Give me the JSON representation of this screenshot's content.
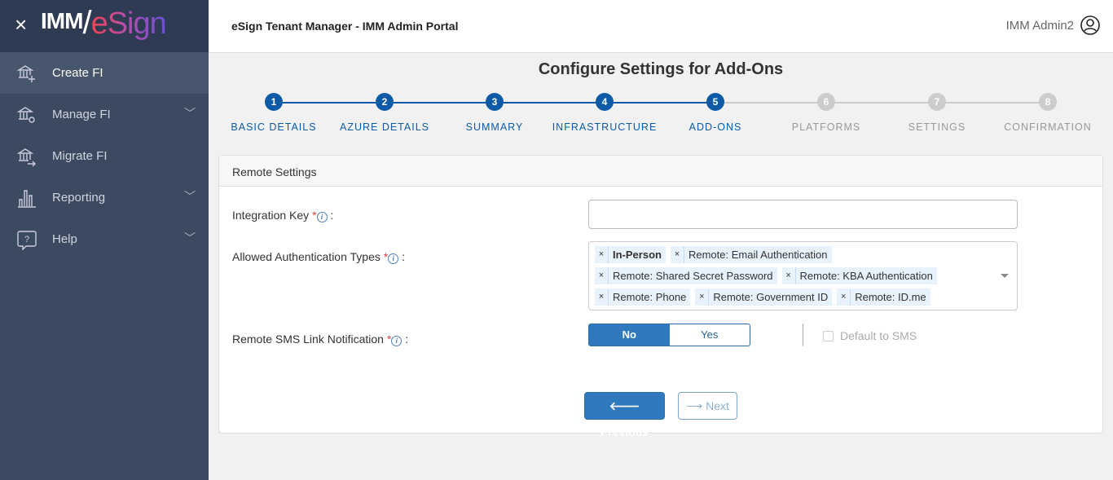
{
  "sidebar": {
    "close_icon": "close-icon",
    "logo": "IMM/eSign",
    "items": [
      {
        "label": "Create FI",
        "icon": "bank-plus-icon",
        "active": true
      },
      {
        "label": "Manage FI",
        "icon": "bank-gear-icon",
        "chevron": true
      },
      {
        "label": "Migrate FI",
        "icon": "bank-arrow-icon"
      },
      {
        "label": "Reporting",
        "icon": "bar-chart-icon",
        "chevron": true
      },
      {
        "label": "Help",
        "icon": "help-bubble-icon",
        "chevron": true
      }
    ]
  },
  "header": {
    "title": "eSign Tenant Manager - IMM Admin Portal",
    "user": "IMM Admin2"
  },
  "page": {
    "title": "Configure Settings for Add-Ons"
  },
  "steps": [
    {
      "n": "1",
      "label": "BASIC DETAILS"
    },
    {
      "n": "2",
      "label": "AZURE DETAILS"
    },
    {
      "n": "3",
      "label": "SUMMARY"
    },
    {
      "n": "4",
      "label": "INFRASTRUCTURE"
    },
    {
      "n": "5",
      "label": "ADD-ONS"
    },
    {
      "n": "6",
      "label": "PLATFORMS"
    },
    {
      "n": "7",
      "label": "SETTINGS"
    },
    {
      "n": "8",
      "label": "CONFIRMATION"
    }
  ],
  "current_step": 5,
  "card": {
    "title": "Remote Settings",
    "integration_key": {
      "label": "Integration Key",
      "value": ""
    },
    "auth_types": {
      "label": "Allowed Authentication Types",
      "tags": [
        [
          "In-Person",
          "Remote: Email Authentication"
        ],
        [
          "Remote: Shared Secret Password",
          "Remote: KBA Authentication"
        ],
        [
          "Remote: Phone",
          "Remote: Government ID",
          "Remote: ID.me"
        ]
      ]
    },
    "sms": {
      "label": "Remote SMS Link Notification",
      "no": "No",
      "yes": "Yes",
      "selected": "No",
      "default_label": "Default to SMS",
      "default_checked": false
    }
  },
  "buttons": {
    "previous": "Previous",
    "next": "Next"
  },
  "colors": {
    "primary": "#0d5aa7",
    "sidebar": "#3b4a61"
  }
}
